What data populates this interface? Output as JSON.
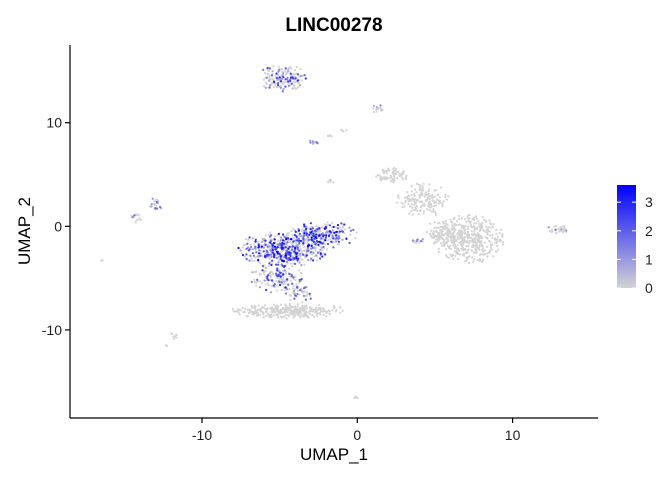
{
  "chart_data": {
    "type": "scatter",
    "title": "LINC00278",
    "xlabel": "UMAP_1",
    "ylabel": "UMAP_2",
    "xlim": [
      -18.5,
      15.5
    ],
    "ylim": [
      -18.5,
      17.5
    ],
    "x_ticks": [
      -10,
      0,
      10
    ],
    "x_tick_labels": [
      "-10",
      "0",
      "10"
    ],
    "y_ticks": [
      -10,
      0,
      10
    ],
    "y_tick_labels": [
      "-10",
      "0",
      "10"
    ],
    "grid": false,
    "color_scale": {
      "low_color": "#d3d3d3",
      "high_color": "#0000ff",
      "range": [
        0,
        3.6
      ],
      "ticks": [
        0,
        1,
        2,
        3
      ],
      "tick_labels": [
        "0",
        "1",
        "2",
        "3"
      ],
      "legend_position": "right"
    },
    "clusters": [
      {
        "cx": -4.8,
        "cy": 14.3,
        "rx": 1.5,
        "ry": 1.2,
        "n": 170,
        "expr_frac": 0.35,
        "expr_max": 3.0
      },
      {
        "cx": 1.3,
        "cy": 11.3,
        "rx": 0.35,
        "ry": 0.4,
        "n": 18,
        "expr_frac": 0.15,
        "expr_max": 2.0
      },
      {
        "cx": -2.8,
        "cy": 8.1,
        "rx": 0.4,
        "ry": 0.2,
        "n": 12,
        "expr_frac": 0.4,
        "expr_max": 2.0
      },
      {
        "cx": -1.8,
        "cy": 8.7,
        "rx": 0.2,
        "ry": 0.15,
        "n": 4,
        "expr_frac": 0.0,
        "expr_max": 0
      },
      {
        "cx": -0.9,
        "cy": 9.2,
        "rx": 0.2,
        "ry": 0.15,
        "n": 4,
        "expr_frac": 0.0,
        "expr_max": 0
      },
      {
        "cx": -1.7,
        "cy": 4.3,
        "rx": 0.25,
        "ry": 0.25,
        "n": 6,
        "expr_frac": 0.3,
        "expr_max": 1.5
      },
      {
        "cx": -13.0,
        "cy": 2.0,
        "rx": 0.4,
        "ry": 0.7,
        "n": 22,
        "expr_frac": 0.3,
        "expr_max": 2.0
      },
      {
        "cx": -14.2,
        "cy": 0.8,
        "rx": 0.35,
        "ry": 0.6,
        "n": 16,
        "expr_frac": 0.2,
        "expr_max": 2.0
      },
      {
        "cx": -16.5,
        "cy": -3.3,
        "rx": 0.12,
        "ry": 0.12,
        "n": 3,
        "expr_frac": 0.0,
        "expr_max": 0
      },
      {
        "cx": -11.8,
        "cy": -10.6,
        "rx": 0.2,
        "ry": 0.4,
        "n": 8,
        "expr_frac": 0.0,
        "expr_max": 0
      },
      {
        "cx": -12.3,
        "cy": -11.5,
        "rx": 0.1,
        "ry": 0.1,
        "n": 2,
        "expr_frac": 0.0,
        "expr_max": 0
      },
      {
        "cx": -0.1,
        "cy": -16.5,
        "rx": 0.2,
        "ry": 0.2,
        "n": 5,
        "expr_frac": 0.0,
        "expr_max": 0
      },
      {
        "cx": -4.8,
        "cy": -2.2,
        "rx": 2.6,
        "ry": 1.6,
        "n": 520,
        "expr_frac": 0.5,
        "expr_max": 3.6
      },
      {
        "cx": -2.2,
        "cy": -0.8,
        "rx": 2.0,
        "ry": 1.2,
        "n": 260,
        "expr_frac": 0.55,
        "expr_max": 3.6
      },
      {
        "cx": -5.2,
        "cy": -5.0,
        "rx": 1.6,
        "ry": 1.3,
        "n": 170,
        "expr_frac": 0.35,
        "expr_max": 3.0
      },
      {
        "cx": -3.6,
        "cy": -6.5,
        "rx": 0.9,
        "ry": 0.8,
        "n": 50,
        "expr_frac": 0.35,
        "expr_max": 2.5
      },
      {
        "cx": -4.3,
        "cy": -8.2,
        "rx": 3.6,
        "ry": 0.65,
        "n": 320,
        "expr_frac": 0.0,
        "expr_max": 0
      },
      {
        "cx": 2.3,
        "cy": 4.9,
        "rx": 1.0,
        "ry": 0.7,
        "n": 70,
        "expr_frac": 0.0,
        "expr_max": 0
      },
      {
        "cx": 4.3,
        "cy": 2.5,
        "rx": 1.6,
        "ry": 1.5,
        "n": 160,
        "expr_frac": 0.0,
        "expr_max": 0
      },
      {
        "cx": 7.2,
        "cy": -1.2,
        "rx": 2.1,
        "ry": 2.2,
        "n": 420,
        "expr_frac": 0.0,
        "expr_max": 0
      },
      {
        "cx": 5.5,
        "cy": -0.6,
        "rx": 1.1,
        "ry": 1.1,
        "n": 90,
        "expr_frac": 0.0,
        "expr_max": 0
      },
      {
        "cx": 3.8,
        "cy": -1.4,
        "rx": 0.5,
        "ry": 0.25,
        "n": 16,
        "expr_frac": 0.3,
        "expr_max": 1.5
      },
      {
        "cx": 12.9,
        "cy": -0.3,
        "rx": 0.6,
        "ry": 0.45,
        "n": 32,
        "expr_frac": 0.25,
        "expr_max": 2.5
      }
    ]
  }
}
